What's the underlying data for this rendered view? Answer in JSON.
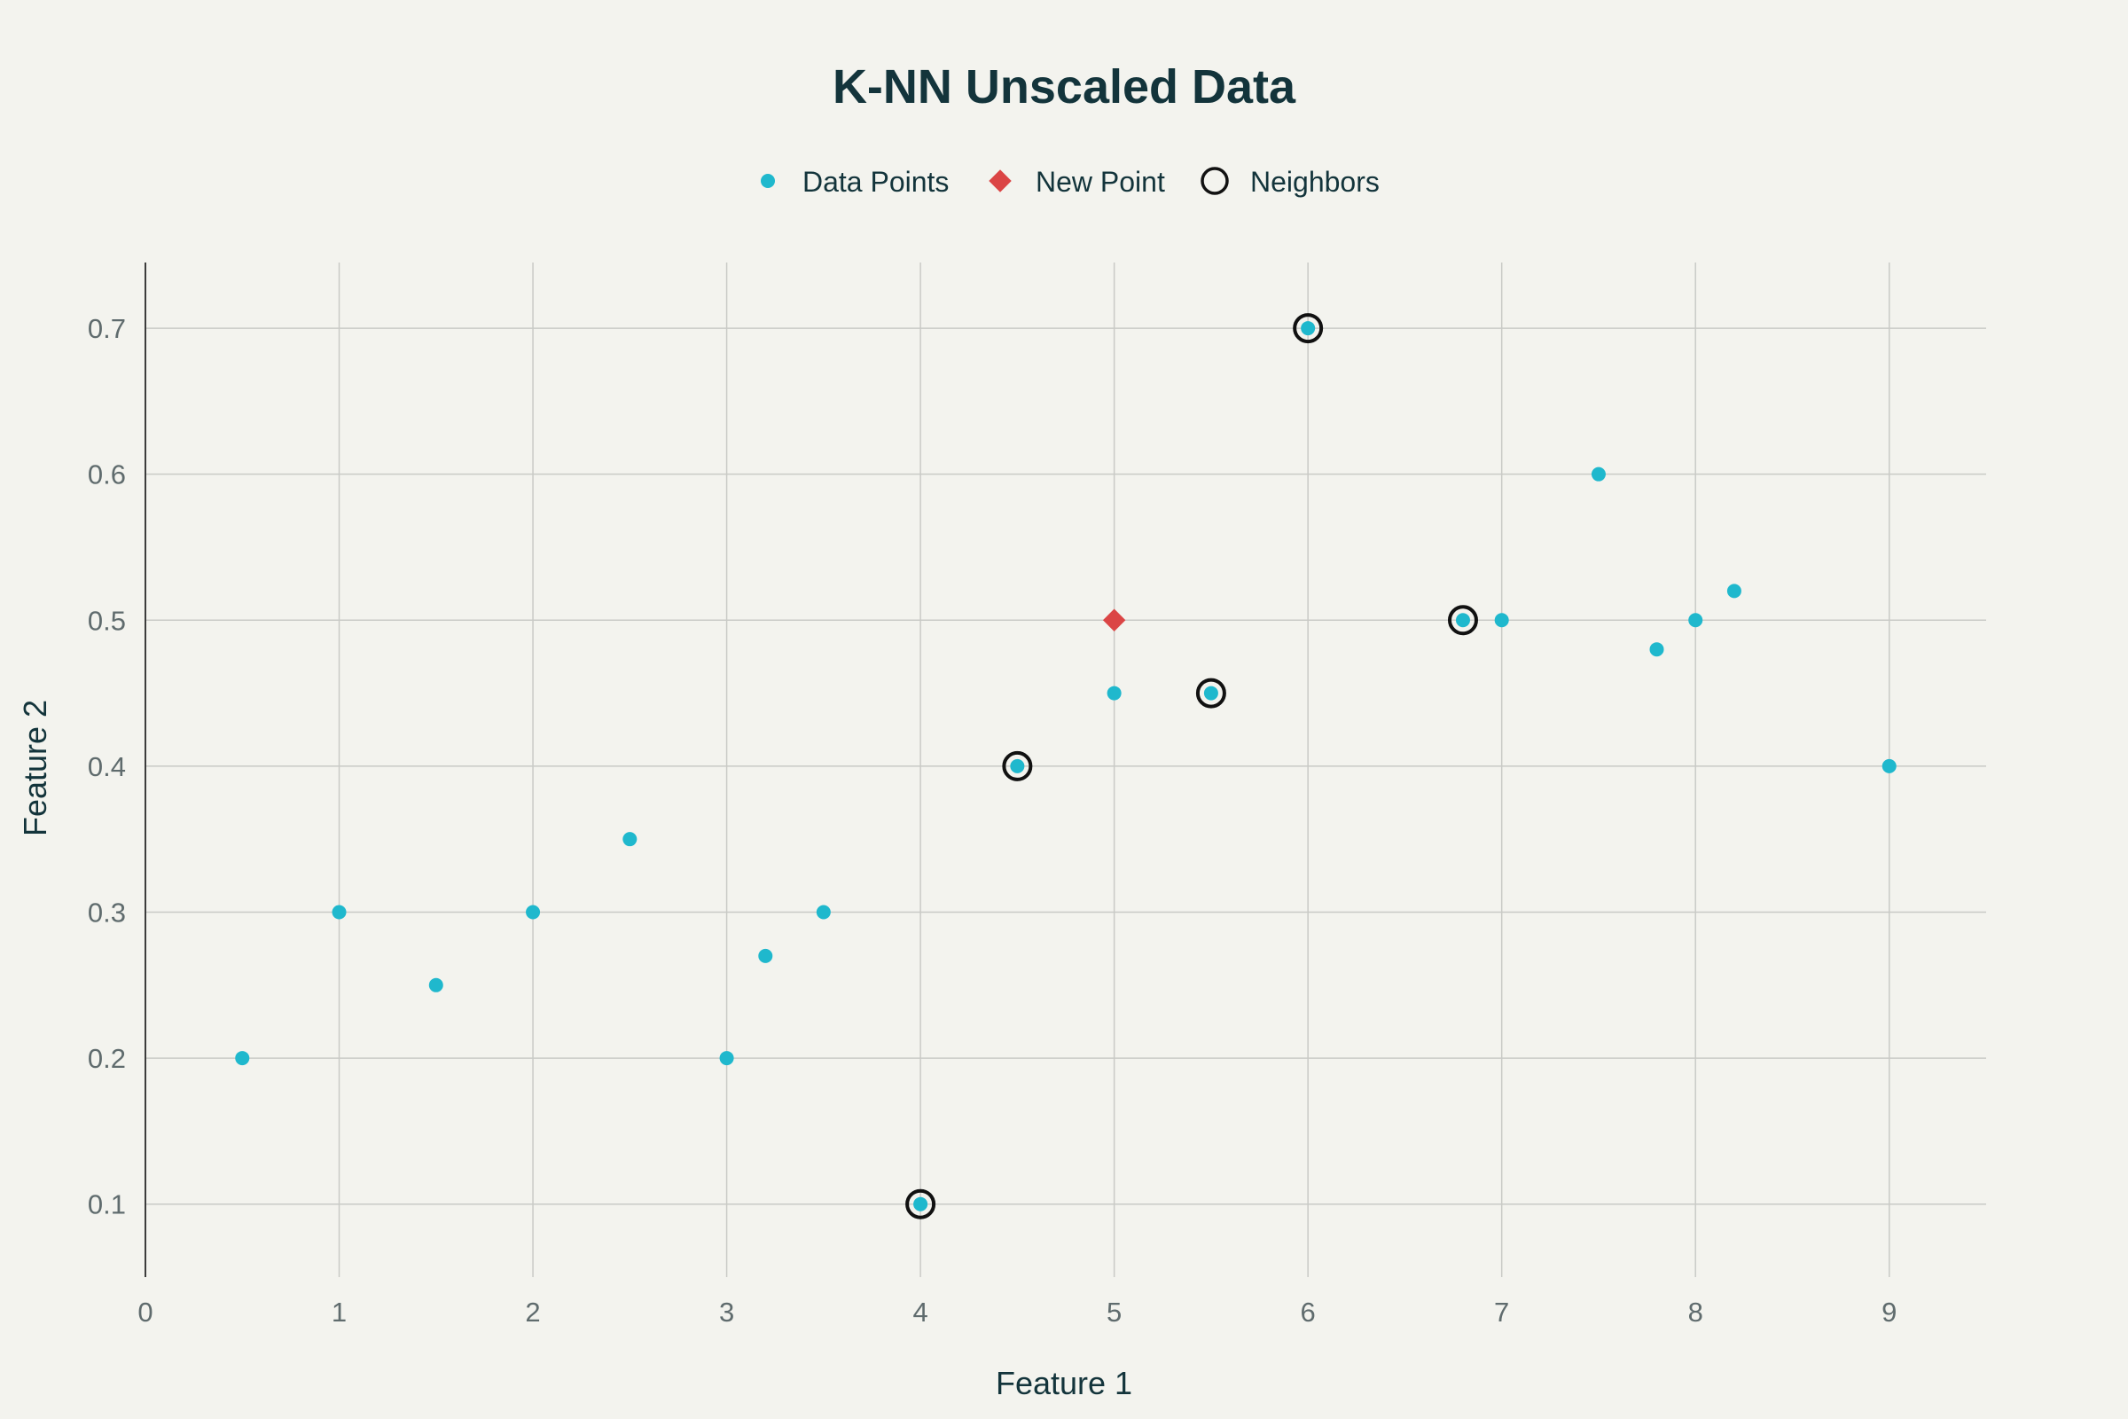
{
  "chart_data": {
    "type": "scatter",
    "title": "K-NN Unscaled Data",
    "xlabel": "Feature 1",
    "ylabel": "Feature 2",
    "xlim": [
      0,
      9.5
    ],
    "ylim": [
      0.05,
      0.745
    ],
    "x_ticks": [
      "0",
      "1",
      "2",
      "3",
      "4",
      "5",
      "6",
      "7",
      "8",
      "9"
    ],
    "y_ticks": [
      "0.1",
      "0.2",
      "0.3",
      "0.4",
      "0.5",
      "0.6",
      "0.7"
    ],
    "grid": true,
    "legend_position": "top-center",
    "legend": [
      "Data Points",
      "New Point",
      "Neighbors"
    ],
    "colors": {
      "data_points": "#1fb8cd",
      "new_point": "#db4545",
      "neighbors": "#111111"
    },
    "series": [
      {
        "name": "Data Points",
        "x": [
          0.5,
          1,
          1.5,
          2,
          2.5,
          3,
          3.2,
          3.5,
          4,
          4.5,
          5,
          5.5,
          6,
          6.8,
          7,
          7.5,
          7.8,
          8,
          8.2,
          9
        ],
        "y": [
          0.2,
          0.3,
          0.25,
          0.3,
          0.35,
          0.2,
          0.27,
          0.3,
          0.1,
          0.4,
          0.45,
          0.45,
          0.7,
          0.5,
          0.5,
          0.6,
          0.48,
          0.5,
          0.52,
          0.4
        ]
      },
      {
        "name": "New Point",
        "x": [
          5
        ],
        "y": [
          0.5
        ]
      },
      {
        "name": "Neighbors",
        "x": [
          4,
          4.5,
          5.5,
          6,
          6.8
        ],
        "y": [
          0.1,
          0.4,
          0.45,
          0.7,
          0.5
        ]
      }
    ]
  }
}
